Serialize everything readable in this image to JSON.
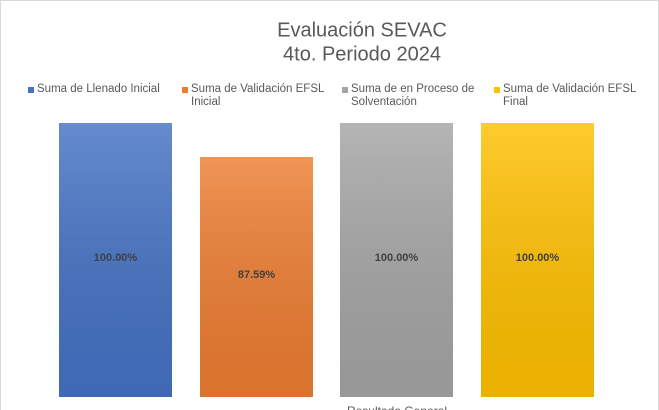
{
  "chart_data": {
    "type": "bar",
    "title": "Evaluación SEVAC",
    "subtitle": "4to. Periodo 2024",
    "categories": [
      "Resultado General"
    ],
    "series": [
      {
        "name": "Suma de Llenado Inicial",
        "color": "#4472c4",
        "values": [
          100
        ],
        "value_labels": [
          "100.00%"
        ]
      },
      {
        "name": "Suma de Validación EFSL Inicial",
        "color": "#ed7d31",
        "values": [
          87.59
        ],
        "value_labels": [
          "87.59%"
        ]
      },
      {
        "name": "Suma de en Proceso de Solventación",
        "color": "#a5a5a5",
        "values": [
          100
        ],
        "value_labels": [
          "100.00%"
        ]
      },
      {
        "name": "Suma de Validación EFSL Final",
        "color": "#ffc000",
        "values": [
          100
        ],
        "value_labels": [
          "100.00%"
        ]
      }
    ],
    "legend": "top"
  }
}
